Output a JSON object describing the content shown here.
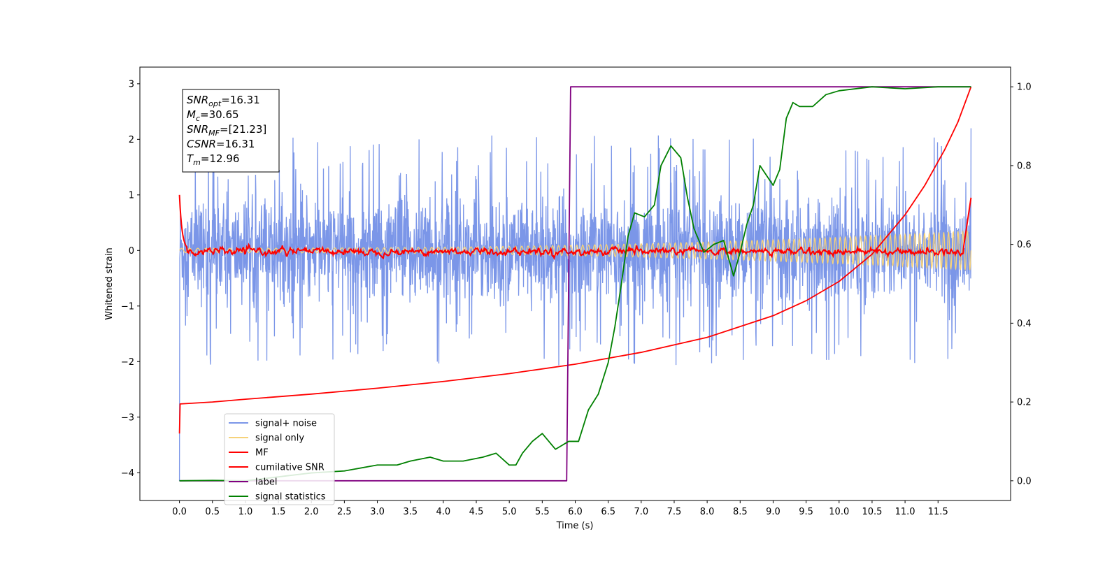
{
  "chart_data": {
    "type": "line",
    "xlabel": "Time (s)",
    "ylabel": "Whitened strain",
    "y2label": "",
    "xlim": [
      -0.6,
      12.6
    ],
    "ylim": [
      -4.5,
      3.3
    ],
    "y2lim": [
      -0.05,
      1.05
    ],
    "xticks": [
      "0.0",
      "0.5",
      "1.0",
      "1.5",
      "2.0",
      "2.5",
      "3.0",
      "3.5",
      "4.0",
      "4.5",
      "5.0",
      "5.5",
      "6.0",
      "6.5",
      "7.0",
      "7.5",
      "8.0",
      "8.5",
      "9.0",
      "9.5",
      "10.0",
      "10.5",
      "11.0",
      "11.5"
    ],
    "yticks": [
      "3",
      "2",
      "1",
      "0",
      "−1",
      "−2",
      "−3",
      "−4"
    ],
    "y2ticks": [
      "1.0",
      "0.8",
      "0.6",
      "0.4",
      "0.2",
      "0.0"
    ],
    "annotations": [
      {
        "base": "SNR",
        "sub": "opt",
        "rest": "=16.31"
      },
      {
        "base": "M",
        "sub": "c",
        "rest": "=30.65"
      },
      {
        "base": "SNR",
        "sub": "MF",
        "rest": "=[21.23]"
      },
      {
        "base": "CSNR",
        "sub": "",
        "rest": "=16.31"
      },
      {
        "base": "T",
        "sub": "m",
        "rest": "=12.96"
      }
    ],
    "legend": {
      "position": "lower-left",
      "entries": [
        {
          "label": "signal+ noise",
          "color": "#7b96e8"
        },
        {
          "label": "signal only",
          "color": "#f6d27a"
        },
        {
          "label": "MF",
          "color": "#ff0000"
        },
        {
          "label": "cumilative SNR",
          "color": "#ff0000"
        },
        {
          "label": "label",
          "color": "#800080"
        },
        {
          "label": "signal statistics",
          "color": "#008000"
        }
      ]
    },
    "series": [
      {
        "name": "signal+ noise",
        "axis": "left",
        "color": "#7b96e8",
        "t_start": 0.0,
        "t_end": 12.0,
        "noise_std": 0.45,
        "spike_range": [
          -2.07,
          2.1
        ],
        "end_values": [
          -4.15,
          2.2
        ]
      },
      {
        "name": "signal only",
        "axis": "left",
        "color": "#f6d27a",
        "t_start": 0.0,
        "t_end": 12.0,
        "amplitude_start": 0.04,
        "amplitude_end": 0.35
      },
      {
        "name": "MF",
        "axis": "left",
        "color": "#ff0000",
        "t_start": 0.0,
        "t_end": 12.0,
        "start_value": 1.0,
        "end_value": 0.95,
        "fluctuation": 0.05
      },
      {
        "name": "cumilative SNR",
        "axis": "right",
        "color": "#ff0000",
        "x": [
          0.0,
          0.01,
          0.5,
          1,
          2,
          3,
          4,
          5,
          6,
          7,
          8,
          9,
          9.5,
          10,
          10.5,
          11,
          11.3,
          11.6,
          11.8,
          11.9,
          12.0
        ],
        "y": [
          0.12,
          0.195,
          0.2,
          0.207,
          0.22,
          0.235,
          0.252,
          0.272,
          0.296,
          0.326,
          0.364,
          0.419,
          0.457,
          0.506,
          0.575,
          0.675,
          0.75,
          0.84,
          0.91,
          0.955,
          1.0
        ]
      },
      {
        "name": "label",
        "axis": "right",
        "color": "#800080",
        "x": [
          0.0,
          5.87,
          5.93,
          12.0
        ],
        "y": [
          0.0,
          0.0,
          1.0,
          1.0
        ]
      },
      {
        "name": "signal statistics",
        "axis": "right",
        "color": "#008000",
        "x": [
          0.0,
          0.5,
          1.0,
          1.5,
          2.0,
          2.5,
          3.0,
          3.3,
          3.5,
          3.8,
          4.0,
          4.3,
          4.6,
          4.8,
          5.0,
          5.1,
          5.2,
          5.35,
          5.5,
          5.6,
          5.7,
          5.8,
          5.9,
          6.05,
          6.2,
          6.35,
          6.5,
          6.6,
          6.7,
          6.8,
          6.9,
          7.05,
          7.2,
          7.3,
          7.45,
          7.6,
          7.7,
          7.8,
          7.95,
          8.1,
          8.25,
          8.4,
          8.5,
          8.6,
          8.7,
          8.8,
          9.0,
          9.1,
          9.2,
          9.3,
          9.4,
          9.6,
          9.8,
          10.0,
          10.5,
          11.0,
          11.5,
          12.0
        ],
        "y": [
          0.0,
          0.001,
          0.0,
          0.01,
          0.02,
          0.025,
          0.04,
          0.04,
          0.05,
          0.06,
          0.05,
          0.05,
          0.06,
          0.07,
          0.04,
          0.04,
          0.07,
          0.1,
          0.12,
          0.1,
          0.08,
          0.09,
          0.1,
          0.1,
          0.18,
          0.22,
          0.3,
          0.39,
          0.5,
          0.62,
          0.68,
          0.67,
          0.7,
          0.8,
          0.85,
          0.82,
          0.72,
          0.64,
          0.58,
          0.6,
          0.61,
          0.52,
          0.58,
          0.65,
          0.7,
          0.8,
          0.75,
          0.79,
          0.92,
          0.96,
          0.95,
          0.95,
          0.98,
          0.99,
          1.0,
          0.995,
          1.0,
          1.0
        ]
      }
    ]
  }
}
